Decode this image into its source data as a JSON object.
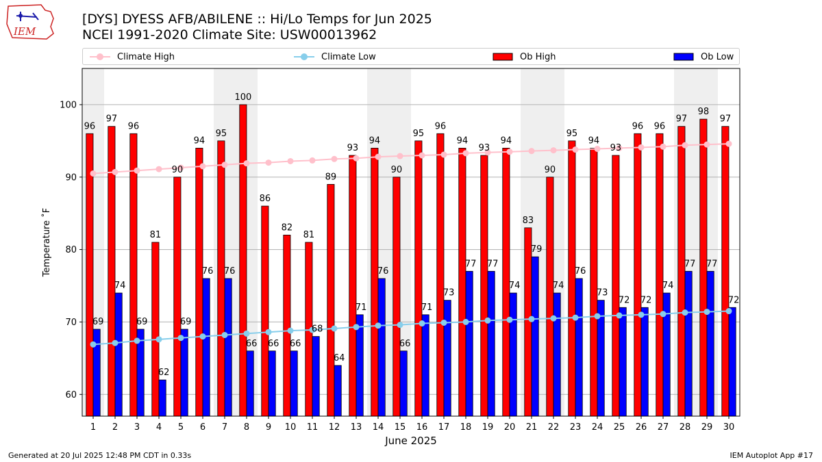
{
  "header": {
    "title_line1": "[DYS] DYESS AFB/ABILENE :: Hi/Lo Temps for Jun 2025",
    "title_line2": "NCEI 1991-2020 Climate Site: USW00013962"
  },
  "logo": {
    "text": "IEM",
    "color": "#cc2222"
  },
  "footer": {
    "left": "Generated at 20 Jul 2025 12:48 PM CDT in 0.33s",
    "right": "IEM Autoplot App #17"
  },
  "colors": {
    "ob_high": "#ff0000",
    "ob_low": "#0000ff",
    "climate_high": "#ffc0cb",
    "climate_low": "#87ceeb",
    "weekend_shade": "#efefef",
    "grid": "#b0b0b0"
  },
  "chart_data": {
    "type": "bar",
    "xlabel": "June 2025",
    "ylabel": "Temperature ˚F",
    "ylim": [
      57,
      105
    ],
    "yticks": [
      60,
      70,
      80,
      90,
      100
    ],
    "grid": "horizontal",
    "legend_position": "top",
    "categories": [
      "1",
      "2",
      "3",
      "4",
      "5",
      "6",
      "7",
      "8",
      "9",
      "10",
      "11",
      "12",
      "13",
      "14",
      "15",
      "16",
      "17",
      "18",
      "19",
      "20",
      "21",
      "22",
      "23",
      "24",
      "25",
      "26",
      "27",
      "28",
      "29",
      "30"
    ],
    "shaded_days": [
      1,
      7,
      8,
      14,
      15,
      21,
      22,
      28,
      29
    ],
    "series": [
      {
        "name": "Climate High",
        "kind": "line",
        "values": [
          90.5,
          90.7,
          90.9,
          91.1,
          91.3,
          91.5,
          91.7,
          91.9,
          92.0,
          92.2,
          92.3,
          92.5,
          92.6,
          92.8,
          92.9,
          93.0,
          93.1,
          93.3,
          93.4,
          93.5,
          93.6,
          93.7,
          93.8,
          93.9,
          94.0,
          94.1,
          94.2,
          94.4,
          94.5,
          94.6
        ]
      },
      {
        "name": "Climate Low",
        "kind": "line",
        "values": [
          66.9,
          67.1,
          67.4,
          67.6,
          67.8,
          68.0,
          68.2,
          68.4,
          68.6,
          68.8,
          68.9,
          69.1,
          69.3,
          69.5,
          69.6,
          69.8,
          69.9,
          70.0,
          70.2,
          70.3,
          70.4,
          70.5,
          70.6,
          70.8,
          70.9,
          71.0,
          71.1,
          71.3,
          71.4,
          71.5
        ]
      },
      {
        "name": "Ob High",
        "kind": "bar",
        "values": [
          96,
          97,
          96,
          81,
          90,
          94,
          95,
          100,
          86,
          82,
          81,
          89,
          93,
          94,
          90,
          95,
          96,
          94,
          93,
          94,
          83,
          90,
          95,
          94,
          93,
          96,
          96,
          97,
          98,
          97
        ]
      },
      {
        "name": "Ob Low",
        "kind": "bar",
        "values": [
          69,
          74,
          69,
          62,
          69,
          76,
          76,
          66,
          66,
          66,
          68,
          64,
          71,
          76,
          66,
          71,
          73,
          77,
          77,
          74,
          79,
          74,
          76,
          73,
          72,
          72,
          74,
          77,
          77,
          72
        ]
      }
    ]
  }
}
